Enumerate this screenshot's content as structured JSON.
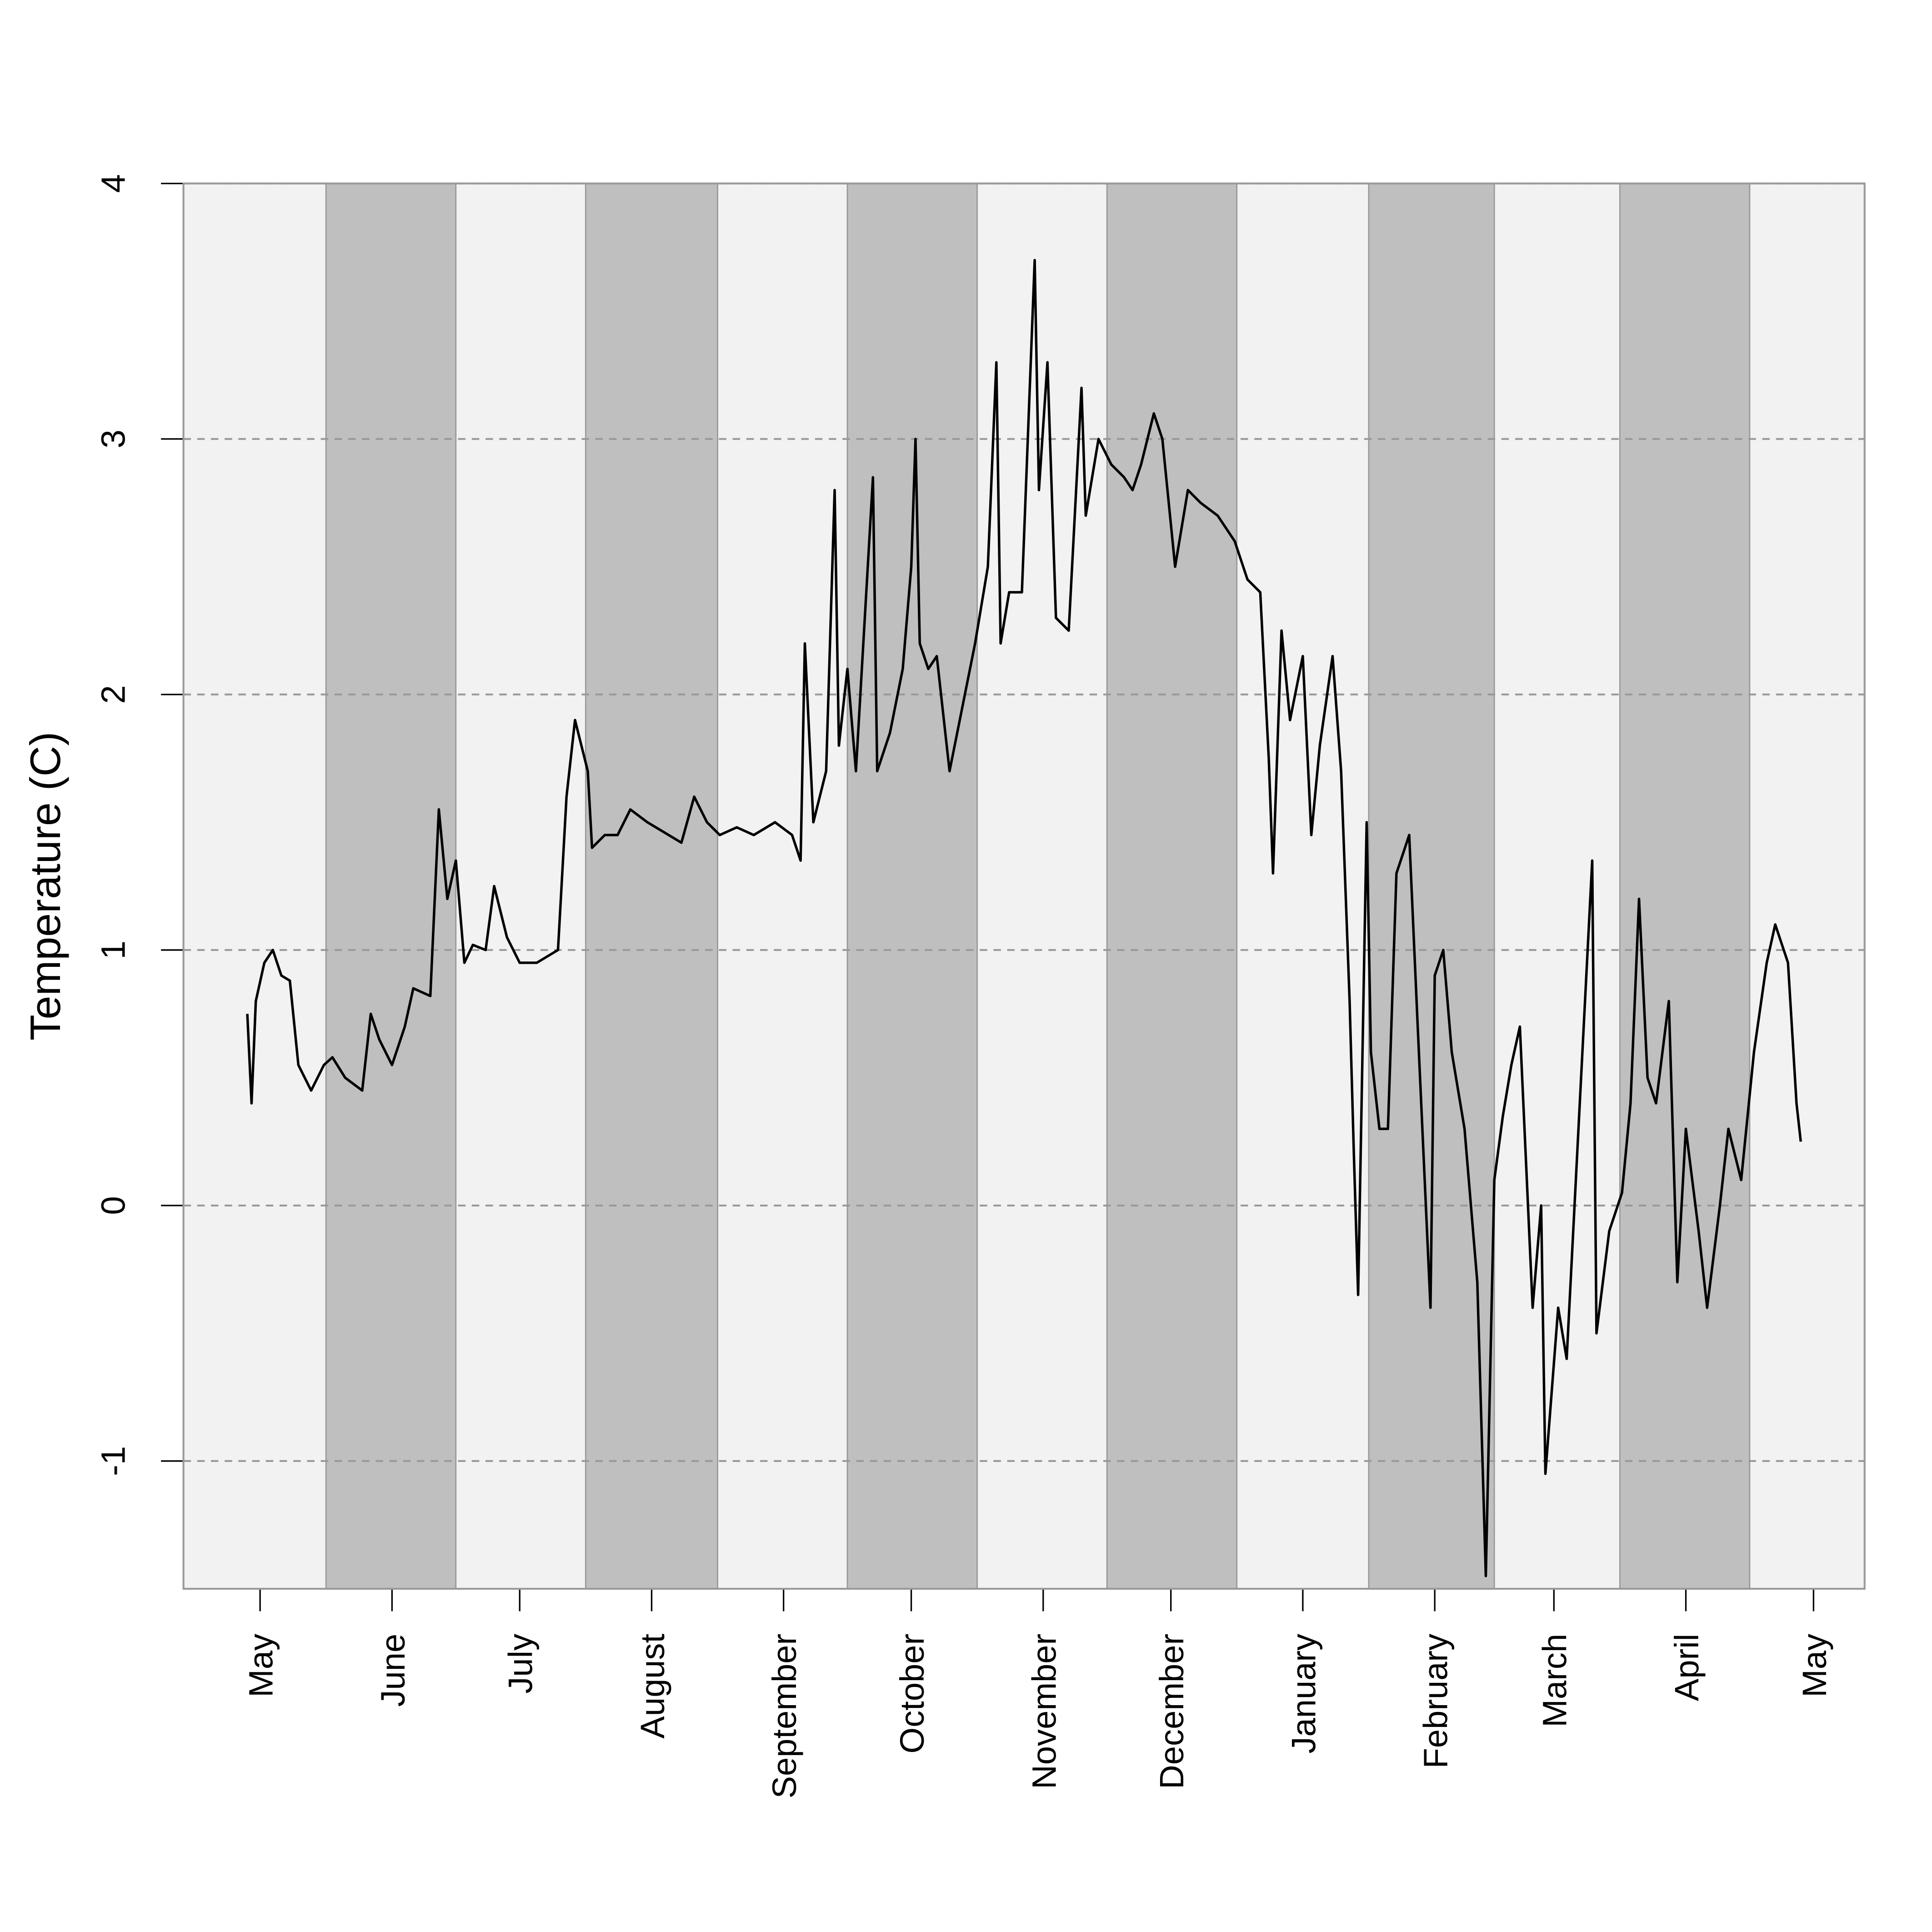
{
  "chart_data": {
    "type": "line",
    "y_label": "Temperature (C)",
    "color": "#000000",
    "grid": true,
    "xlim": [
      -18,
      377
    ],
    "ylim": [
      -1.5,
      4
    ],
    "yticks": [
      -1,
      0,
      1,
      2,
      3,
      4
    ],
    "xticks": [
      {
        "value": 0,
        "label": "May"
      },
      {
        "value": 31,
        "label": "June"
      },
      {
        "value": 61,
        "label": "July"
      },
      {
        "value": 92,
        "label": "August"
      },
      {
        "value": 123,
        "label": "September"
      },
      {
        "value": 153,
        "label": "October"
      },
      {
        "value": 184,
        "label": "November"
      },
      {
        "value": 214,
        "label": "December"
      },
      {
        "value": 245,
        "label": "January"
      },
      {
        "value": 276,
        "label": "February"
      },
      {
        "value": 304,
        "label": "March"
      },
      {
        "value": 335,
        "label": "April"
      },
      {
        "value": 365,
        "label": "May"
      }
    ],
    "band_colors": [
      "#f2f2f2",
      "#bfbfbf"
    ],
    "x": [
      -3,
      -2,
      -1,
      1,
      3,
      5,
      7,
      9,
      12,
      15,
      17,
      20,
      24,
      26,
      28,
      31,
      34,
      36,
      40,
      42,
      44,
      46,
      48,
      50,
      53,
      55,
      58,
      61,
      65,
      70,
      72,
      74,
      77,
      78,
      81,
      84,
      87,
      91,
      96,
      99,
      102,
      105,
      108,
      112,
      116,
      121,
      125,
      127,
      128,
      130,
      133,
      135,
      136,
      138,
      140,
      144,
      145,
      148,
      151,
      153,
      154,
      155,
      157,
      159,
      162,
      165,
      168,
      171,
      173,
      174,
      176,
      179,
      182,
      183,
      185,
      187,
      190,
      193,
      194,
      197,
      200,
      203,
      205,
      207,
      210,
      212,
      215,
      218,
      221,
      225,
      229,
      232,
      235,
      237,
      238,
      240,
      242,
      245,
      247,
      249,
      252,
      254,
      256,
      257,
      258,
      260,
      261,
      263,
      265,
      267,
      270,
      272,
      275,
      276,
      278,
      280,
      283,
      286,
      288,
      290,
      292,
      294,
      296,
      299,
      301,
      302,
      305,
      307,
      309,
      311,
      313,
      314,
      317,
      320,
      322,
      324,
      326,
      328,
      331,
      333,
      335,
      338,
      340,
      343,
      345,
      348,
      351,
      354,
      356,
      359,
      361,
      362
    ],
    "values": [
      0.75,
      0.4,
      0.8,
      0.95,
      1.0,
      0.9,
      0.88,
      0.55,
      0.45,
      0.55,
      0.58,
      0.5,
      0.45,
      0.75,
      0.65,
      0.55,
      0.7,
      0.85,
      0.82,
      1.55,
      1.2,
      1.35,
      0.95,
      1.02,
      1.0,
      1.25,
      1.05,
      0.95,
      0.95,
      1.0,
      1.6,
      1.9,
      1.7,
      1.4,
      1.45,
      1.45,
      1.55,
      1.5,
      1.45,
      1.42,
      1.6,
      1.5,
      1.45,
      1.48,
      1.45,
      1.5,
      1.45,
      1.35,
      2.2,
      1.5,
      1.7,
      2.8,
      1.8,
      2.1,
      1.7,
      2.85,
      1.7,
      1.85,
      2.1,
      2.5,
      3.0,
      2.2,
      2.1,
      2.15,
      1.7,
      1.95,
      2.2,
      2.5,
      3.3,
      2.2,
      2.4,
      2.4,
      3.7,
      2.8,
      3.3,
      2.3,
      2.25,
      3.2,
      2.7,
      3.0,
      2.9,
      2.85,
      2.8,
      2.9,
      3.1,
      3.0,
      2.5,
      2.8,
      2.75,
      2.7,
      2.6,
      2.45,
      2.4,
      1.75,
      1.3,
      2.25,
      1.9,
      2.15,
      1.45,
      1.8,
      2.15,
      1.7,
      0.8,
      0.2,
      -0.35,
      1.5,
      0.6,
      0.3,
      0.3,
      1.3,
      1.45,
      0.7,
      -0.4,
      0.9,
      1.0,
      0.6,
      0.3,
      -0.3,
      -1.45,
      0.1,
      0.35,
      0.55,
      0.7,
      -0.4,
      0.0,
      -1.05,
      -0.4,
      -0.6,
      0.05,
      0.7,
      1.35,
      -0.5,
      -0.1,
      0.05,
      0.4,
      1.2,
      0.5,
      0.4,
      0.8,
      -0.3,
      0.3,
      -0.1,
      -0.4,
      0.0,
      0.3,
      0.1,
      0.6,
      0.95,
      1.1,
      0.95,
      0.4,
      0.25
    ]
  }
}
